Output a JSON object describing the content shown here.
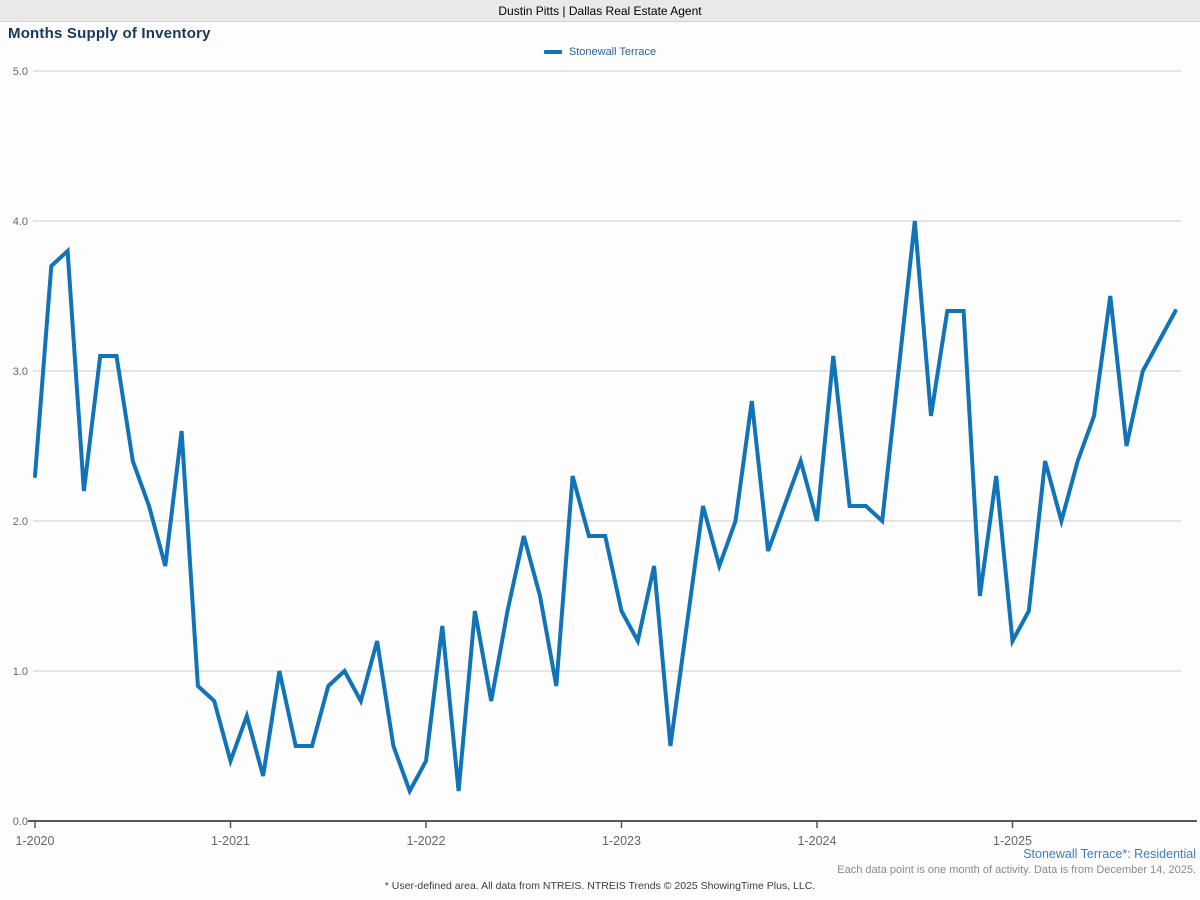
{
  "header": {
    "title": "Dustin Pitts | Dallas Real Estate Agent"
  },
  "page": {
    "title": "Months Supply of Inventory"
  },
  "legend": {
    "label": "Stonewall Terrace"
  },
  "footer": {
    "series_note": "Stonewall Terrace*: Residential",
    "data_note": "Each data point is one month of activity. Data is from December 14, 2025.",
    "disclaimer": "* User-defined area. All data from NTREIS. NTREIS Trends © 2025 ShowingTime Plus, LLC."
  },
  "colors": {
    "line": "#1173b8",
    "title_text": "#17375e",
    "legend_text": "#2a6496",
    "footer_blue": "#3d7dbf",
    "axis_text": "#666666",
    "gridline": "#cccccc",
    "axis_line": "#58585a"
  },
  "chart_data": {
    "type": "line",
    "title": "Months Supply of Inventory",
    "x_start": "1-2020",
    "x_end": "11-2025",
    "x_frequency": "monthly",
    "x_tick_labels": [
      "1-2020",
      "1-2021",
      "1-2022",
      "1-2023",
      "1-2024",
      "1-2025"
    ],
    "y_tick_labels": [
      "0.0",
      "1.0",
      "2.0",
      "3.0",
      "4.0",
      "5.0"
    ],
    "ylim": [
      0.0,
      5.0
    ],
    "grid": "horizontal",
    "legend_position": "top-center",
    "series": [
      {
        "name": "Stonewall Terrace",
        "color": "#1173b8",
        "values": [
          2.3,
          3.7,
          3.8,
          2.2,
          3.1,
          3.1,
          2.4,
          2.1,
          1.7,
          2.6,
          0.9,
          0.8,
          0.4,
          0.7,
          0.3,
          1.0,
          0.5,
          0.5,
          0.9,
          1.0,
          0.8,
          1.2,
          0.5,
          0.2,
          0.4,
          1.3,
          0.2,
          1.4,
          0.8,
          1.4,
          1.9,
          1.5,
          0.9,
          2.3,
          1.9,
          1.9,
          1.4,
          1.2,
          1.7,
          0.5,
          1.3,
          2.1,
          1.7,
          2.0,
          2.8,
          1.8,
          2.1,
          2.4,
          2.0,
          3.1,
          2.1,
          2.1,
          2.0,
          3.0,
          4.0,
          2.7,
          3.4,
          3.4,
          1.5,
          2.3,
          1.2,
          1.4,
          2.4,
          2.0,
          2.4,
          2.7,
          3.5,
          2.5,
          3.0,
          3.2,
          3.4
        ]
      }
    ]
  }
}
